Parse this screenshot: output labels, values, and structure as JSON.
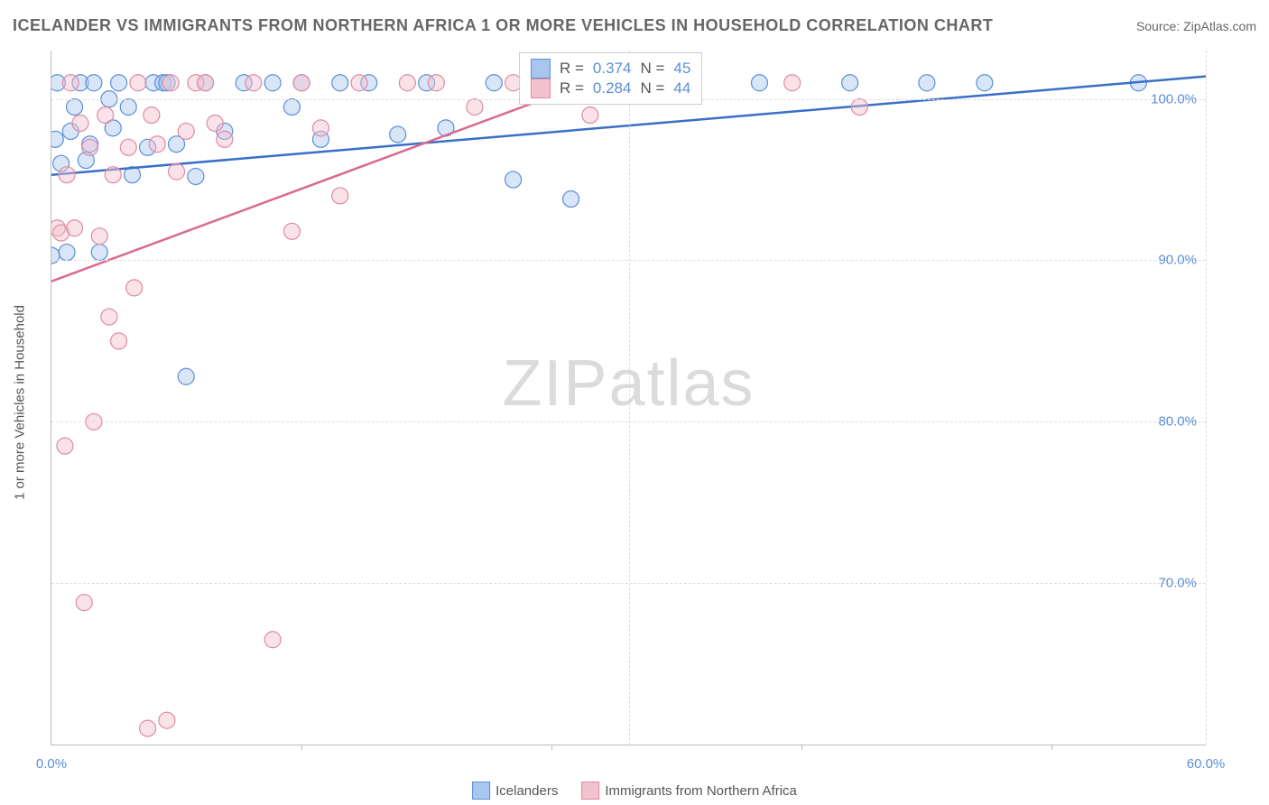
{
  "title": "ICELANDER VS IMMIGRANTS FROM NORTHERN AFRICA 1 OR MORE VEHICLES IN HOUSEHOLD CORRELATION CHART",
  "source_label": "Source: ZipAtlas.com",
  "watermark": "ZIPatlas",
  "y_axis_label": "1 or more Vehicles in Household",
  "chart": {
    "type": "scatter",
    "xlim": [
      0,
      60
    ],
    "ylim": [
      60,
      103
    ],
    "x_ticks": [
      0,
      30,
      60
    ],
    "x_tick_labels": [
      "0.0%",
      "",
      "60.0%"
    ],
    "y_ticks": [
      70,
      80,
      90,
      100
    ],
    "y_tick_labels": [
      "70.0%",
      "80.0%",
      "90.0%",
      "100.0%"
    ],
    "grid_color": "#dddddd",
    "background_color": "#ffffff",
    "axis_color": "#bbbbbb",
    "tick_label_color": "#5b8fd6",
    "marker_radius": 9,
    "marker_opacity": 0.45,
    "trend_line_width": 2.5,
    "series": [
      {
        "name": "Icelanders",
        "fill": "#a9c7ee",
        "stroke": "#5b8fd6",
        "trend_color": "#3a6fc7",
        "R": 0.374,
        "N": 45,
        "trend_line": {
          "x1": 0,
          "y1": 95.3,
          "x2": 60,
          "y2": 101.4
        },
        "points": [
          [
            0.2,
            97.5
          ],
          [
            0.3,
            101.0
          ],
          [
            0.5,
            96.0
          ],
          [
            0.8,
            90.5
          ],
          [
            1.0,
            98.0
          ],
          [
            1.2,
            99.5
          ],
          [
            1.5,
            101.0
          ],
          [
            1.8,
            96.2
          ],
          [
            2.0,
            97.2
          ],
          [
            2.2,
            101.0
          ],
          [
            2.5,
            90.5
          ],
          [
            3.0,
            100.0
          ],
          [
            3.2,
            98.2
          ],
          [
            3.5,
            101.0
          ],
          [
            4.0,
            99.5
          ],
          [
            4.2,
            95.3
          ],
          [
            5.0,
            97.0
          ],
          [
            5.3,
            101.0
          ],
          [
            5.8,
            101.0
          ],
          [
            6.0,
            101.0
          ],
          [
            6.5,
            97.2
          ],
          [
            7.0,
            82.8
          ],
          [
            7.5,
            95.2
          ],
          [
            8.0,
            101.0
          ],
          [
            9.0,
            98.0
          ],
          [
            10.0,
            101.0
          ],
          [
            11.5,
            101.0
          ],
          [
            12.5,
            99.5
          ],
          [
            13.0,
            101.0
          ],
          [
            14.0,
            97.5
          ],
          [
            15.0,
            101.0
          ],
          [
            16.5,
            101.0
          ],
          [
            18.0,
            97.8
          ],
          [
            19.5,
            101.0
          ],
          [
            20.5,
            98.2
          ],
          [
            23.0,
            101.0
          ],
          [
            24.0,
            95.0
          ],
          [
            27.0,
            93.8
          ],
          [
            30.5,
            101.0
          ],
          [
            36.8,
            101.0
          ],
          [
            41.5,
            101.0
          ],
          [
            45.5,
            101.0
          ],
          [
            48.5,
            101.0
          ],
          [
            56.5,
            101.0
          ],
          [
            0.0,
            90.3
          ]
        ]
      },
      {
        "name": "Immigrants from Northern Africa",
        "fill": "#f2c2cf",
        "stroke": "#e08aa3",
        "trend_color": "#d96a8f",
        "R": 0.284,
        "N": 44,
        "trend_line": {
          "x1": 0,
          "y1": 88.7,
          "x2": 25.6,
          "y2": 100.0
        },
        "points": [
          [
            0.3,
            92.0
          ],
          [
            0.5,
            91.7
          ],
          [
            0.7,
            78.5
          ],
          [
            0.8,
            95.3
          ],
          [
            1.0,
            101.0
          ],
          [
            1.2,
            92.0
          ],
          [
            1.5,
            98.5
          ],
          [
            1.7,
            68.8
          ],
          [
            2.0,
            97.0
          ],
          [
            2.2,
            80.0
          ],
          [
            2.5,
            91.5
          ],
          [
            2.8,
            99.0
          ],
          [
            3.0,
            86.5
          ],
          [
            3.2,
            95.3
          ],
          [
            3.5,
            85.0
          ],
          [
            4.0,
            97.0
          ],
          [
            4.3,
            88.3
          ],
          [
            4.5,
            101.0
          ],
          [
            5.0,
            61.0
          ],
          [
            5.2,
            99.0
          ],
          [
            5.5,
            97.2
          ],
          [
            6.0,
            61.5
          ],
          [
            6.2,
            101.0
          ],
          [
            6.5,
            95.5
          ],
          [
            7.0,
            98.0
          ],
          [
            7.5,
            101.0
          ],
          [
            8.0,
            101.0
          ],
          [
            8.5,
            98.5
          ],
          [
            9.0,
            97.5
          ],
          [
            10.5,
            101.0
          ],
          [
            11.5,
            66.5
          ],
          [
            12.5,
            91.8
          ],
          [
            13.0,
            101.0
          ],
          [
            14.0,
            98.2
          ],
          [
            15.0,
            94.0
          ],
          [
            16.0,
            101.0
          ],
          [
            18.5,
            101.0
          ],
          [
            20.0,
            101.0
          ],
          [
            22.0,
            99.5
          ],
          [
            24.0,
            101.0
          ],
          [
            28.0,
            99.0
          ],
          [
            33.0,
            101.0
          ],
          [
            38.5,
            101.0
          ],
          [
            42.0,
            99.5
          ]
        ]
      }
    ]
  },
  "legend": {
    "items": [
      {
        "label": "Icelanders",
        "fill": "#a9c7ee",
        "stroke": "#5b8fd6"
      },
      {
        "label": "Immigrants from Northern Africa",
        "fill": "#f2c2cf",
        "stroke": "#e08aa3"
      }
    ]
  },
  "stat_box": {
    "rows": [
      {
        "fill": "#a9c7ee",
        "stroke": "#5b8fd6",
        "r_label": "R =",
        "r_val": "0.374",
        "n_label": "N =",
        "n_val": "45"
      },
      {
        "fill": "#f2c2cf",
        "stroke": "#e08aa3",
        "r_label": "R =",
        "r_val": "0.284",
        "n_label": "N =",
        "n_val": "44"
      }
    ]
  }
}
